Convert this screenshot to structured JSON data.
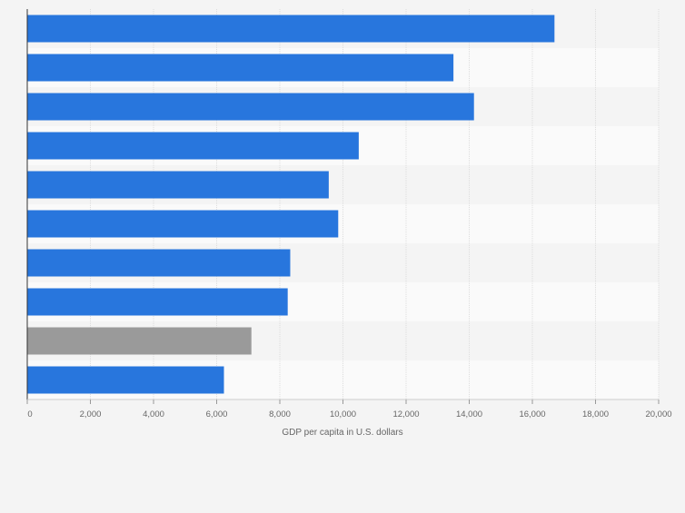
{
  "chart_data": {
    "type": "bar",
    "orientation": "horizontal",
    "categories": [
      "",
      "",
      "",
      "",
      "",
      "",
      "",
      "",
      "",
      ""
    ],
    "values": [
      16700,
      13500,
      14150,
      10500,
      9550,
      9850,
      8330,
      8250,
      7100,
      6230
    ],
    "highlighted_index": 8,
    "xlabel": "GDP per capita in U.S. dollars",
    "ylabel": "",
    "xlim": [
      0,
      20000
    ],
    "x_ticks": [
      0,
      2000,
      4000,
      6000,
      8000,
      10000,
      12000,
      14000,
      16000,
      18000,
      20000
    ],
    "x_tick_labels": [
      "0",
      "2,000",
      "4,000",
      "6,000",
      "8,000",
      "10,000",
      "12,000",
      "14,000",
      "16,000",
      "18,000",
      "20,000"
    ],
    "grid": true,
    "colors": {
      "bar": "#2876dd",
      "bar_highlight": "#9a9a9a",
      "band_light": "#fafafa",
      "band_dark": "#f4f4f4",
      "gridline": "#dddddd",
      "axis": "#333333",
      "tick_text": "#666666"
    }
  }
}
